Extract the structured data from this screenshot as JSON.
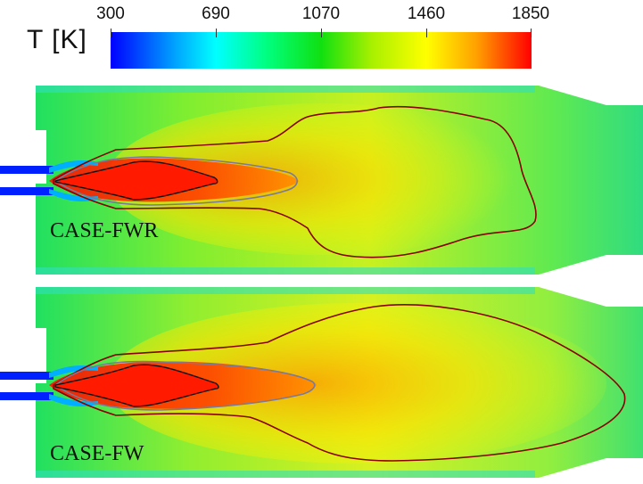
{
  "colorbar": {
    "title": "T [K]",
    "ticks": [
      "300",
      "690",
      "1070",
      "1460",
      "1850"
    ],
    "stops": [
      "#0000ff",
      "#00ffff",
      "#10e010",
      "#ffff00",
      "#ff0000"
    ]
  },
  "panels": [
    {
      "label": "CASE-FWR"
    },
    {
      "label": "CASE-FW"
    }
  ]
}
